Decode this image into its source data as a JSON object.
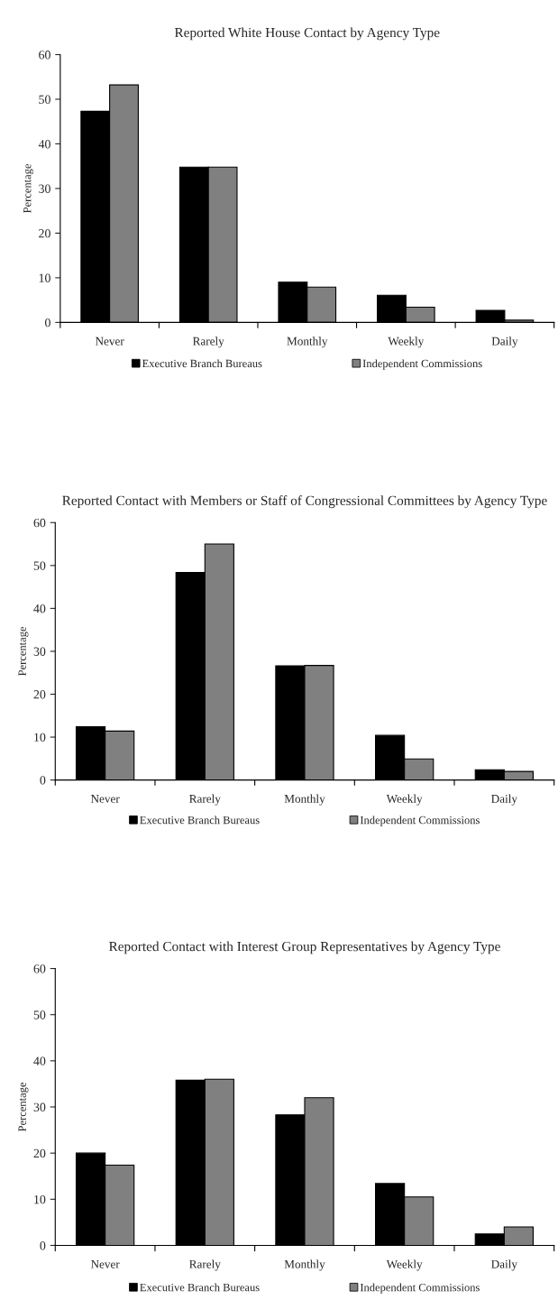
{
  "chart_data": [
    {
      "type": "bar",
      "title": "Reported White House Contact by Agency Type",
      "ylabel": "Percentage",
      "categories": [
        "Never",
        "Rarely",
        "Monthly",
        "Weekly",
        "Daily"
      ],
      "series": [
        {
          "name": "Executive Branch Bureaus",
          "color": "#000000",
          "values": [
            47.3,
            34.8,
            9.0,
            6.1,
            2.7
          ]
        },
        {
          "name": "Independent Commissions",
          "color": "#808080",
          "values": [
            53.2,
            34.8,
            7.9,
            3.4,
            0.5
          ]
        }
      ],
      "ylim": [
        0,
        60
      ],
      "yticks": [
        0,
        10,
        20,
        30,
        40,
        50,
        60
      ],
      "grid": false,
      "legend": "bottom"
    },
    {
      "type": "bar",
      "title": "Reported Contact with Members or Staff of Congressional Committees by Agency Type",
      "ylabel": "Percentage",
      "categories": [
        "Never",
        "Rarely",
        "Monthly",
        "Weekly",
        "Daily"
      ],
      "series": [
        {
          "name": "Executive Branch Bureaus",
          "color": "#000000",
          "values": [
            12.4,
            48.4,
            26.6,
            10.4,
            2.4
          ]
        },
        {
          "name": "Independent Commissions",
          "color": "#808080",
          "values": [
            11.4,
            55.0,
            26.7,
            4.9,
            2.0
          ]
        }
      ],
      "ylim": [
        0,
        60
      ],
      "yticks": [
        0,
        10,
        20,
        30,
        40,
        50,
        60
      ],
      "grid": false,
      "legend": "bottom"
    },
    {
      "type": "bar",
      "title": "Reported Contact with Interest Group Representatives by Agency Type",
      "ylabel": "Percentage",
      "categories": [
        "Never",
        "Rarely",
        "Monthly",
        "Weekly",
        "Daily"
      ],
      "series": [
        {
          "name": "Executive Branch Bureaus",
          "color": "#000000",
          "values": [
            20.0,
            35.8,
            28.3,
            13.4,
            2.5
          ]
        },
        {
          "name": "Independent Commissions",
          "color": "#808080",
          "values": [
            17.4,
            36.0,
            32.0,
            10.5,
            4.0
          ]
        }
      ],
      "ylim": [
        0,
        60
      ],
      "yticks": [
        0,
        10,
        20,
        30,
        40,
        50,
        60
      ],
      "grid": false,
      "legend": "bottom"
    }
  ]
}
